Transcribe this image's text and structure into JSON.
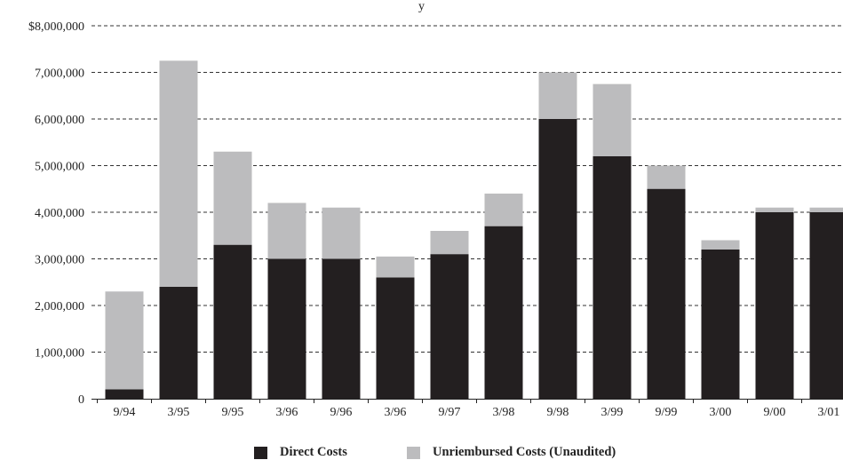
{
  "chart_data": {
    "type": "bar",
    "stacked": true,
    "title_fragment": "y",
    "categories": [
      "9/94",
      "3/95",
      "9/95",
      "3/96",
      "9/96",
      "3/96",
      "9/97",
      "3/98",
      "9/98",
      "3/99",
      "9/99",
      "3/00",
      "9/00",
      "3/01"
    ],
    "series": [
      {
        "name": "Direct Costs",
        "color": "#231f20",
        "values": [
          200000,
          2400000,
          3300000,
          3000000,
          3000000,
          2600000,
          3100000,
          3700000,
          6000000,
          5200000,
          4500000,
          3200000,
          4000000,
          4000000
        ]
      },
      {
        "name": "Unriembursed Costs (Unaudited)",
        "color": "#bcbcbe",
        "values": [
          2100000,
          4850000,
          2000000,
          1200000,
          1100000,
          450000,
          500000,
          700000,
          1000000,
          1550000,
          500000,
          200000,
          100000,
          100000
        ]
      }
    ],
    "y_ticks": [
      "0",
      "1,000,000",
      "2,000,000",
      "3,000,000",
      "4,000,000",
      "5,000,000",
      "6,000,000",
      "7,000,000",
      "$8,000,000"
    ],
    "ylim": [
      0,
      8000000
    ],
    "ytick_step": 1000000,
    "grid": "dashed horizontal",
    "legend_position": "bottom"
  }
}
